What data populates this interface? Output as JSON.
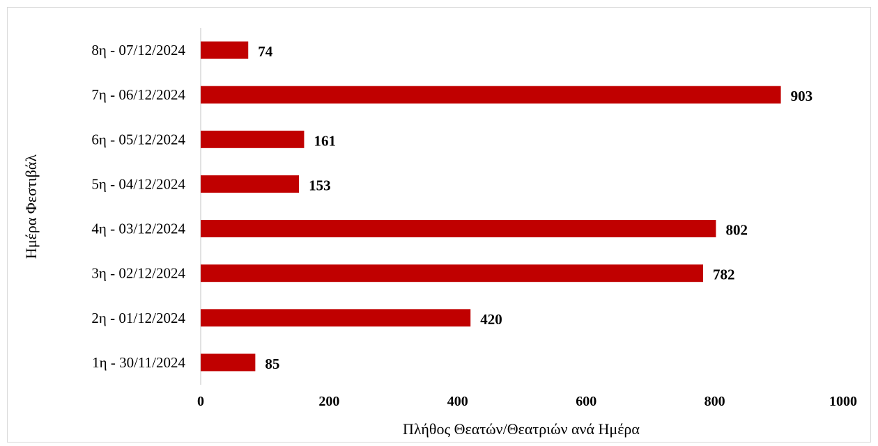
{
  "chart_data": {
    "type": "bar",
    "orientation": "horizontal",
    "title": "",
    "xlabel": "Πλήθος Θεατών/Θεατριών ανά Ημέρα",
    "ylabel": "Ημέρα Φεστιβάλ",
    "categories": [
      "1η - 30/11/2024",
      "2η - 01/12/2024",
      "3η - 02/12/2024",
      "4η - 03/12/2024",
      "5η - 04/12/2024",
      "6η - 05/12/2024",
      "7η - 06/12/2024",
      "8η - 07/12/2024"
    ],
    "values": [
      85,
      420,
      782,
      802,
      153,
      161,
      903,
      74
    ],
    "xlim": [
      0,
      1000
    ],
    "xticks": [
      "0",
      "200",
      "400",
      "600",
      "800",
      "1000"
    ],
    "grid": false,
    "legend": "none",
    "bar_color": "#C00000",
    "data_labels": true
  }
}
